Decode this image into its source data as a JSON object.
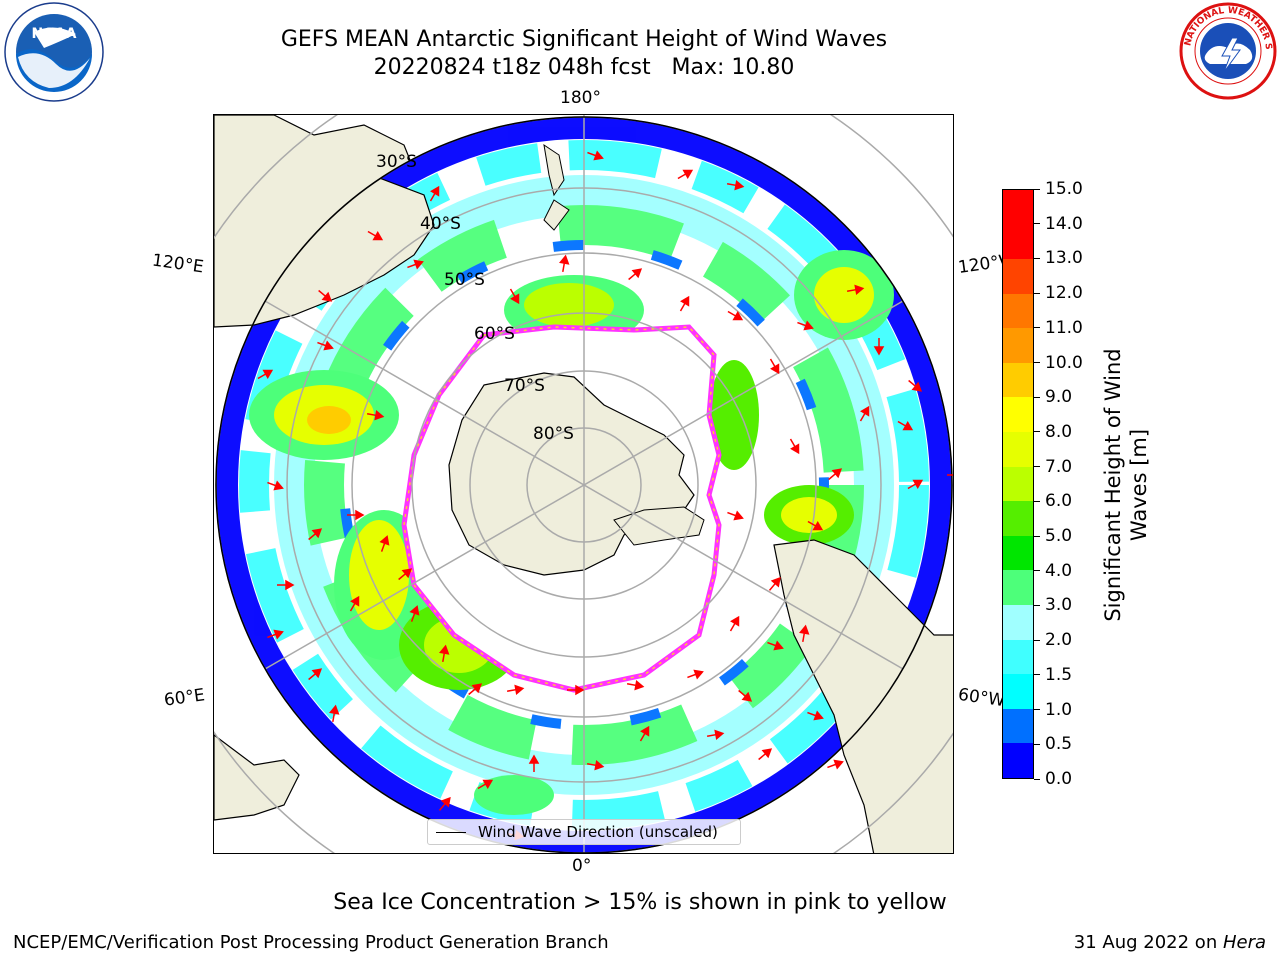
{
  "title": {
    "line1": "GEFS MEAN Antarctic Significant Height of Wind Waves",
    "line2": "20220824 t18z 048h fcst   Max: 10.80"
  },
  "logos": {
    "left": "noaa-logo",
    "right": "nws-logo"
  },
  "map": {
    "projection": "south-polar-stereographic",
    "lon_labels": {
      "top": "180°",
      "left_top": "120°E",
      "right_top": "120°W",
      "left_bottom": "60°E",
      "right_bottom": "60°W",
      "bottom": "0°"
    },
    "lat_labels": [
      "30°S",
      "40°S",
      "50°S",
      "60°S",
      "70°S",
      "80°S"
    ],
    "land_color": "#efeedc",
    "ice_colors": [
      "#ff33ff",
      "#ffcc33"
    ]
  },
  "legend": {
    "label": "Wind Wave Direction (unscaled)"
  },
  "colorbar": {
    "label": "Significant Height of Wind Waves [m]",
    "label_line1": "Significant Height of Wind",
    "label_line2": "Waves [m]",
    "ticks": [
      "0.0",
      "0.5",
      "1.0",
      "1.5",
      "2.0",
      "3.0",
      "4.0",
      "5.0",
      "6.0",
      "7.0",
      "8.0",
      "9.0",
      "10.0",
      "11.0",
      "12.0",
      "13.0",
      "14.0",
      "15.0"
    ],
    "colors": [
      "#0000ff",
      "#0070ff",
      "#00ffff",
      "#40ffff",
      "#a0ffff",
      "#4dff7a",
      "#00e600",
      "#55ee00",
      "#bbff00",
      "#e6ff00",
      "#ffff00",
      "#ffcc00",
      "#ff9900",
      "#ff7700",
      "#ff4400",
      "#ff0000",
      "#ff0000"
    ]
  },
  "caption": "Sea Ice Concentration > 15% is shown in pink to yellow",
  "footer": {
    "left": "NCEP/EMC/Verification Post Processing Product Generation Branch",
    "right_prefix": "31 Aug 2022 on ",
    "right_machine": "Hera"
  }
}
